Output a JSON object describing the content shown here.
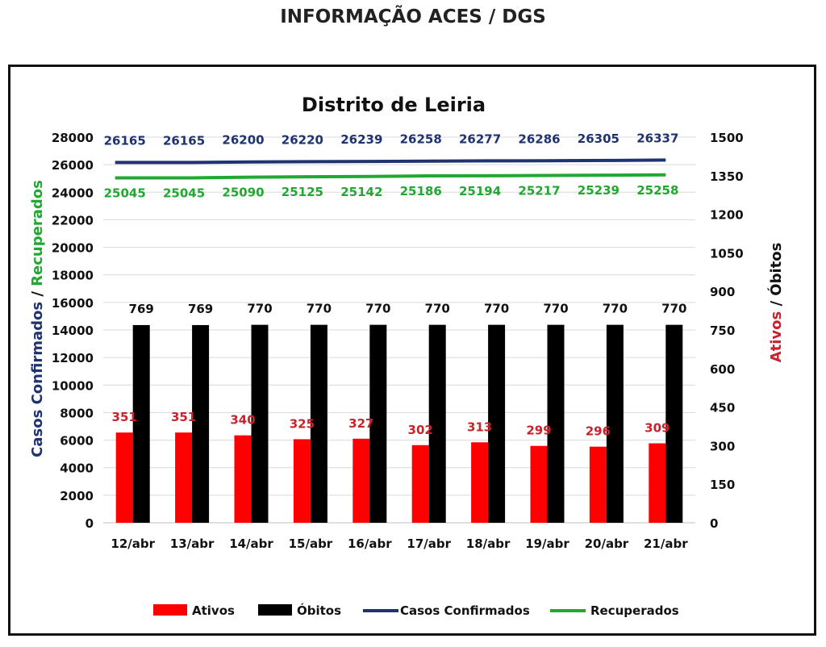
{
  "page_title": "INFORMAÇÃO ACES / DGS",
  "colors": {
    "ativos": "#ff0000",
    "obitos": "#000000",
    "confirmados": "#1f3370",
    "recuperados": "#22a832",
    "ativos_label": "#c8232c"
  },
  "chart_data": {
    "type": "bar",
    "title": "Distrito de Leiria",
    "categories": [
      "12/abr",
      "13/abr",
      "14/abr",
      "15/abr",
      "16/abr",
      "17/abr",
      "18/abr",
      "19/abr",
      "20/abr",
      "21/abr"
    ],
    "ylabel_left": [
      "Casos Confirmados",
      " / ",
      "Recuperados"
    ],
    "ylabel_right": [
      "Ativos",
      " / ",
      "Óbitos"
    ],
    "y_left": {
      "min": 0,
      "max": 28000,
      "step": 2000
    },
    "y_right": {
      "min": 0,
      "max": 1500,
      "step": 150
    },
    "series": [
      {
        "name": "Ativos",
        "type": "bar",
        "axis": "right",
        "values": [
          351,
          351,
          340,
          325,
          327,
          302,
          313,
          299,
          296,
          309
        ]
      },
      {
        "name": "Óbitos",
        "type": "bar",
        "axis": "right",
        "values": [
          769,
          769,
          770,
          770,
          770,
          770,
          770,
          770,
          770,
          770
        ]
      },
      {
        "name": "Casos Confirmados",
        "type": "line",
        "axis": "left",
        "values": [
          26165,
          26165,
          26200,
          26220,
          26239,
          26258,
          26277,
          26286,
          26305,
          26337
        ]
      },
      {
        "name": "Recuperados",
        "type": "line",
        "axis": "left",
        "values": [
          25045,
          25045,
          25090,
          25125,
          25142,
          25186,
          25194,
          25217,
          25239,
          25258
        ]
      }
    ],
    "grid": true,
    "legend_position": "bottom"
  }
}
